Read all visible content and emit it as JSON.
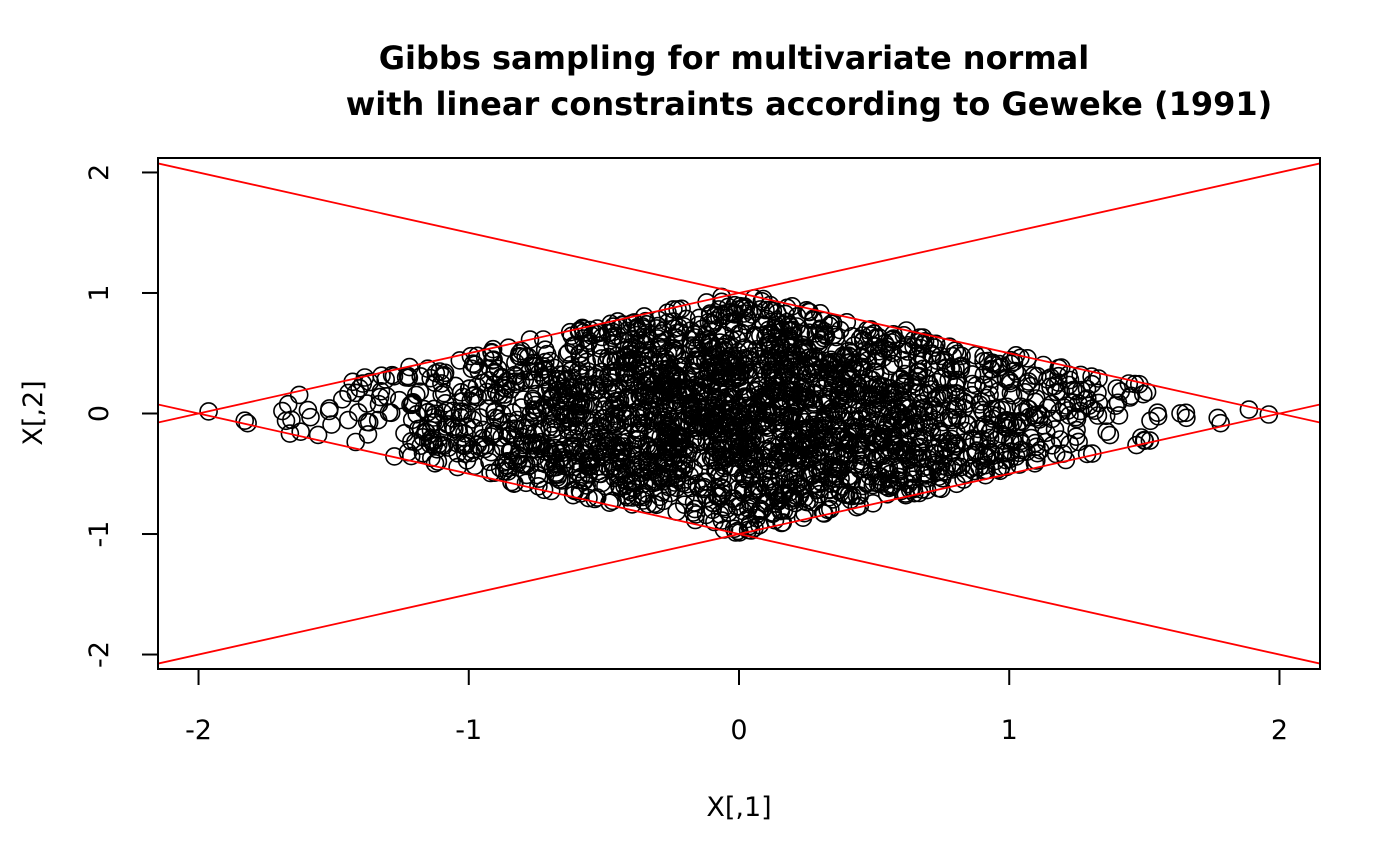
{
  "chart_data": {
    "type": "scatter",
    "title": "Gibbs sampling for multivariate normal",
    "subtitle": "with linear constraints according to Geweke (1991)",
    "xlabel": "X[,1]",
    "ylabel": "X[,2]",
    "xlim": [
      -2.15,
      2.15
    ],
    "ylim": [
      -2.12,
      2.12
    ],
    "x_ticks": [
      -2,
      -1,
      0,
      1,
      2
    ],
    "y_ticks": [
      -2,
      -1,
      0,
      1,
      2
    ],
    "x_tick_labels": [
      "-2",
      "-1",
      "0",
      "1",
      "2"
    ],
    "y_tick_labels": [
      "-2",
      "-1",
      "0",
      "1",
      "2"
    ],
    "grid": false,
    "legend": "none",
    "point_color": "#000000",
    "point_marker": "open-circle",
    "constraint_color": "#ff0000",
    "constraint_lines": [
      {
        "intercept": 1,
        "slope": 0.5
      },
      {
        "intercept": -1,
        "slope": 0.5
      },
      {
        "intercept": 1,
        "slope": -0.5
      },
      {
        "intercept": -1,
        "slope": -0.5
      }
    ],
    "sample_region": "|X[,1]| + 2*|X[,2]| <= 2",
    "n_points": 2600,
    "approx_std": [
      0.75,
      0.65
    ]
  }
}
